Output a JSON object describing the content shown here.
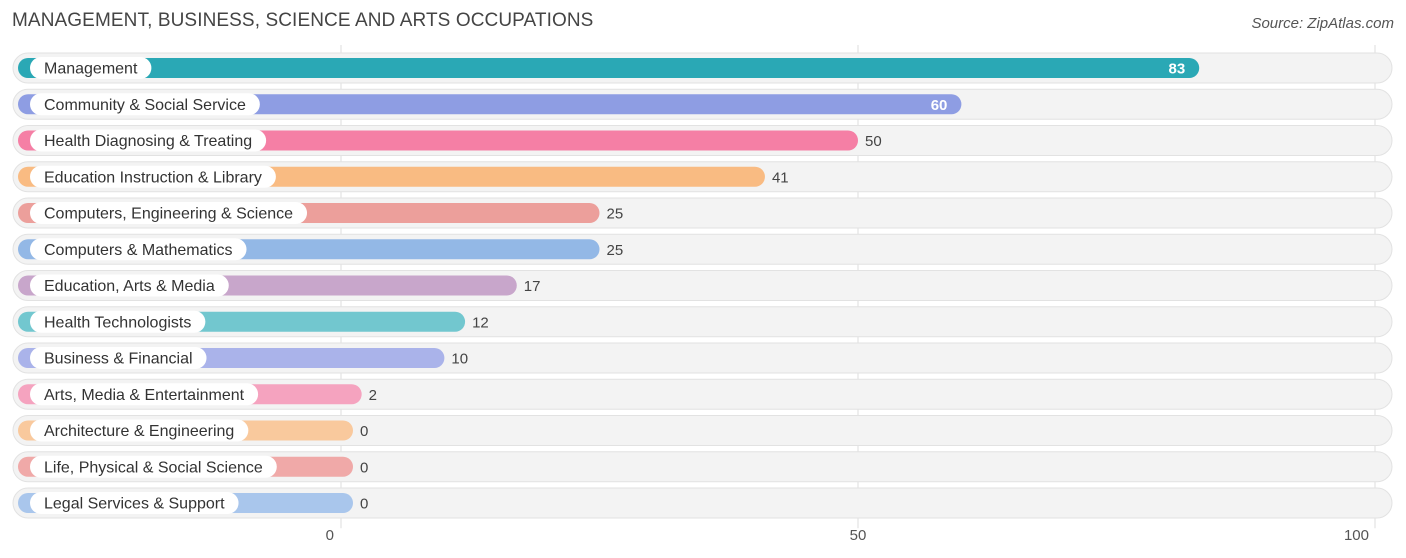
{
  "header": {
    "title": "MANAGEMENT, BUSINESS, SCIENCE AND ARTS OCCUPATIONS",
    "source": "Source: ZipAtlas.com"
  },
  "chart_data": {
    "type": "bar",
    "orientation": "horizontal",
    "title": "MANAGEMENT, BUSINESS, SCIENCE AND ARTS OCCUPATIONS",
    "xlim": [
      0,
      100
    ],
    "xticks": [
      0,
      50,
      100
    ],
    "grid": true,
    "categories": [
      "Management",
      "Community & Social Service",
      "Health Diagnosing & Treating",
      "Education Instruction & Library",
      "Computers, Engineering & Science",
      "Computers & Mathematics",
      "Education, Arts & Media",
      "Health Technologists",
      "Business & Financial",
      "Arts, Media & Entertainment",
      "Architecture & Engineering",
      "Life, Physical & Social Science",
      "Legal Services & Support"
    ],
    "values": [
      83,
      60,
      50,
      41,
      25,
      25,
      17,
      12,
      10,
      2,
      0,
      0,
      0
    ],
    "colors": [
      "#2aa8b5",
      "#8e9de3",
      "#f57fa5",
      "#f9bb82",
      "#ec9f9b",
      "#93b8e6",
      "#c8a6cb",
      "#72c7cf",
      "#aab3ea",
      "#f5a3bf",
      "#f9c99d",
      "#f0a9a8",
      "#a9c6ec"
    ],
    "label_inside": [
      true,
      true,
      false,
      false,
      false,
      false,
      false,
      false,
      false,
      false,
      false,
      false,
      false
    ]
  }
}
